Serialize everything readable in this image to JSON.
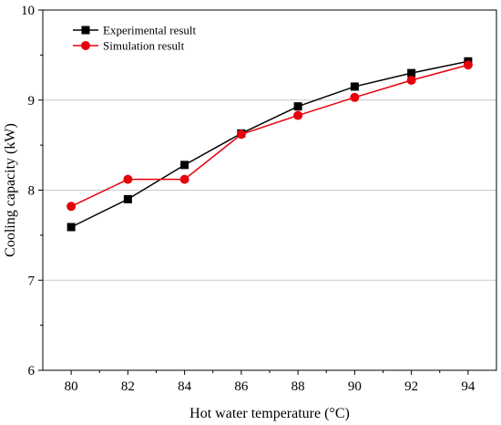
{
  "chart_data": {
    "type": "line",
    "xlabel": "Hot water temperature (°C)",
    "ylabel": "Cooling capacity (kW)",
    "xlim": [
      79,
      95
    ],
    "ylim": [
      6,
      10
    ],
    "xticks": [
      80,
      82,
      84,
      86,
      88,
      90,
      92,
      94
    ],
    "yticks": [
      6,
      7,
      8,
      9,
      10
    ],
    "grid": "horizontal",
    "legend_position": "top-left",
    "x": [
      80,
      82,
      84,
      86,
      88,
      90,
      92,
      94
    ],
    "series": [
      {
        "name": "Experimental result",
        "color": "#000000",
        "marker": "square",
        "values": [
          7.59,
          7.9,
          8.28,
          8.63,
          8.93,
          9.15,
          9.3,
          9.43
        ]
      },
      {
        "name": "Simulation result",
        "color": "#e8000b",
        "marker": "circle",
        "values": [
          7.82,
          8.12,
          8.12,
          8.62,
          8.83,
          9.03,
          9.22,
          9.39
        ]
      }
    ]
  }
}
